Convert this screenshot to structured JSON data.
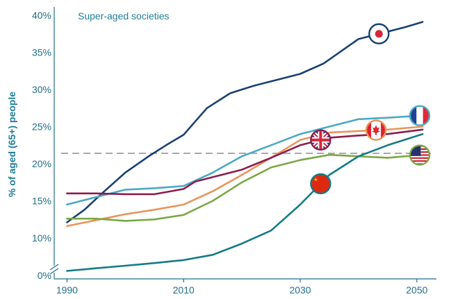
{
  "chart_data": {
    "type": "line",
    "title": "",
    "annotation": "Super-aged societies",
    "xlabel": "",
    "ylabel": "% of aged (65+) people",
    "xlim": [
      1989,
      2053
    ],
    "ylim": [
      0,
      40
    ],
    "x_ticks": [
      1990,
      2010,
      2030,
      2050
    ],
    "y_ticks": [
      {
        "value": 0,
        "label": "0%"
      },
      {
        "value": 10,
        "label": "10%"
      },
      {
        "value": 15,
        "label": "15%"
      },
      {
        "value": 20,
        "label": "20%"
      },
      {
        "value": 25,
        "label": "25%"
      },
      {
        "value": 30,
        "label": "30%"
      },
      {
        "value": 35,
        "label": "35%"
      },
      {
        "value": 40,
        "label": "40%"
      }
    ],
    "axis_break_below": 10,
    "grid": false,
    "reference_line": {
      "value": 21.4,
      "style": "dashed",
      "color": "#a9a9a9"
    },
    "series": [
      {
        "key": "japan",
        "flag_icon": "japan-flag-icon",
        "color": "#1a3f73",
        "flag_at": 2043.5,
        "x": [
          1990,
          1993,
          1996,
          2000,
          2004,
          2007,
          2010,
          2014,
          2018,
          2022,
          2026,
          2030,
          2034,
          2040,
          2044,
          2048,
          2051
        ],
        "y": [
          12.1,
          13.8,
          16.0,
          18.8,
          21.0,
          22.5,
          23.9,
          27.5,
          29.5,
          30.5,
          31.3,
          32.1,
          33.5,
          36.8,
          37.6,
          38.4,
          39.1
        ]
      },
      {
        "key": "france",
        "flag_icon": "france-flag-icon",
        "color": "#4aa9c3",
        "flag_at": 2050.5,
        "x": [
          1990,
          1995,
          2000,
          2005,
          2010,
          2015,
          2020,
          2025,
          2030,
          2035,
          2040,
          2045,
          2051
        ],
        "y": [
          14.5,
          15.5,
          16.5,
          16.7,
          17.0,
          18.8,
          21.0,
          22.5,
          24.0,
          25.0,
          26.0,
          26.2,
          26.5
        ]
      },
      {
        "key": "canada",
        "flag_icon": "canada-flag-icon",
        "color": "#e8955a",
        "flag_at": 2043,
        "x": [
          1990,
          1995,
          2000,
          2005,
          2010,
          2015,
          2020,
          2025,
          2030,
          2035,
          2040,
          2045,
          2051
        ],
        "y": [
          11.6,
          12.4,
          13.2,
          13.8,
          14.5,
          16.3,
          18.5,
          20.8,
          23.2,
          24.2,
          24.4,
          24.6,
          25.0
        ]
      },
      {
        "key": "uk",
        "flag_icon": "uk-flag-icon",
        "color": "#8b1d4f",
        "flag_at": 2033.5,
        "x": [
          1990,
          1995,
          2000,
          2005,
          2010,
          2012,
          2015,
          2020,
          2025,
          2030,
          2035,
          2040,
          2045,
          2051
        ],
        "y": [
          16.0,
          16.0,
          15.9,
          15.9,
          16.6,
          17.6,
          18.2,
          19.2,
          20.8,
          22.5,
          23.5,
          23.8,
          24.0,
          24.6
        ]
      },
      {
        "key": "usa",
        "flag_icon": "usa-flag-icon",
        "color": "#7aa844",
        "flag_at": 2050.5,
        "x": [
          1990,
          1995,
          2000,
          2005,
          2010,
          2015,
          2020,
          2025,
          2030,
          2035,
          2040,
          2045,
          2051
        ],
        "y": [
          12.6,
          12.6,
          12.3,
          12.5,
          13.1,
          15.0,
          17.5,
          19.5,
          20.5,
          21.2,
          21.0,
          20.8,
          21.2
        ]
      },
      {
        "key": "china",
        "flag_icon": "china-flag-icon",
        "color": "#137b85",
        "flag_at": 2033.5,
        "x": [
          1990,
          1995,
          2000,
          2005,
          2010,
          2015,
          2020,
          2025,
          2030,
          2035,
          2040,
          2045,
          2051
        ],
        "y": [
          1.2,
          1.9,
          2.6,
          3.3,
          4.1,
          5.5,
          8.5,
          11.0,
          14.5,
          18.5,
          21.0,
          22.5,
          24.0
        ]
      }
    ]
  },
  "colors": {
    "axis": "#1f6f88",
    "text": "#1f7f99",
    "reference_line": "#a9a9a9"
  }
}
